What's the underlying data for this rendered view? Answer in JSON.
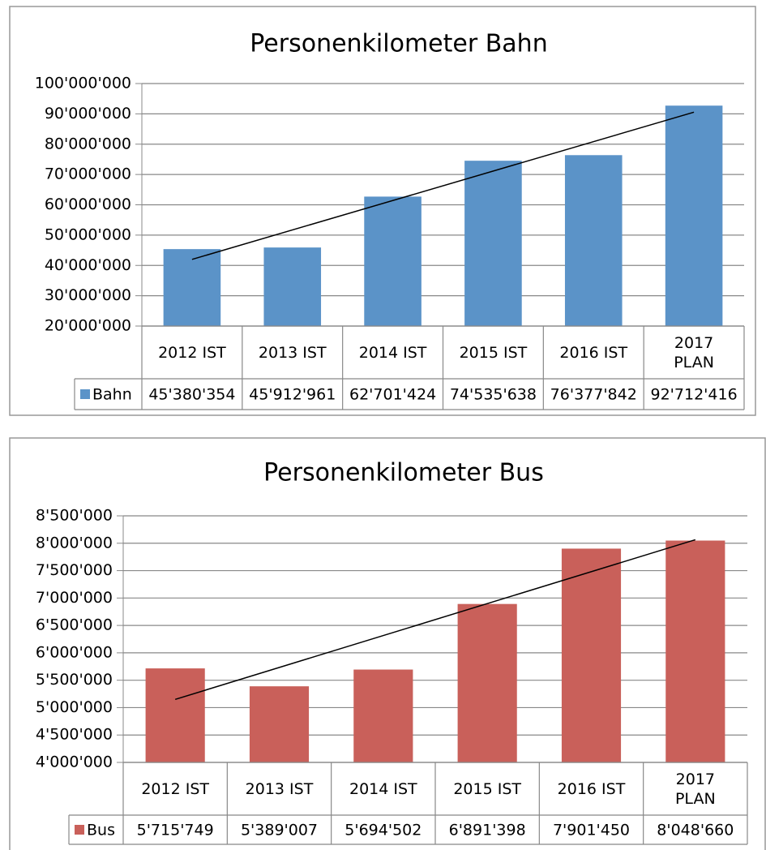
{
  "chart_data": [
    {
      "type": "bar",
      "title": "Personenkilometer Bahn",
      "categories": [
        "2012 IST",
        "2013 IST",
        "2014 IST",
        "2015 IST",
        "2016 IST",
        "2017\nPLAN"
      ],
      "series": [
        {
          "name": "Bahn",
          "color": "#5b93c8",
          "values": [
            45380354,
            45912961,
            62701424,
            74535638,
            76377842,
            92712416
          ],
          "value_labels": [
            "45'380'354",
            "45'912'961",
            "62'701'424",
            "74'535'638",
            "76'377'842",
            "92'712'416"
          ]
        }
      ],
      "ylim": [
        20000000,
        100000000
      ],
      "yticks": [
        {
          "value": 20000000,
          "label": "20'000'000"
        },
        {
          "value": 30000000,
          "label": "30'000'000"
        },
        {
          "value": 40000000,
          "label": "40'000'000"
        },
        {
          "value": 50000000,
          "label": "50'000'000"
        },
        {
          "value": 60000000,
          "label": "60'000'000"
        },
        {
          "value": 70000000,
          "label": "70'000'000"
        },
        {
          "value": 80000000,
          "label": "80'000'000"
        },
        {
          "value": 90000000,
          "label": "90'000'000"
        },
        {
          "value": 100000000,
          "label": "100'000'000"
        }
      ],
      "grid": true,
      "trendline": true,
      "data_table": true
    },
    {
      "type": "bar",
      "title": "Personenkilometer Bus",
      "categories": [
        "2012 IST",
        "2013 IST",
        "2014 IST",
        "2015 IST",
        "2016 IST",
        "2017\nPLAN"
      ],
      "series": [
        {
          "name": "Bus",
          "color": "#c9605a",
          "values": [
            5715749,
            5389007,
            5694502,
            6891398,
            7901450,
            8048660
          ],
          "value_labels": [
            "5'715'749",
            "5'389'007",
            "5'694'502",
            "6'891'398",
            "7'901'450",
            "8'048'660"
          ]
        }
      ],
      "ylim": [
        4000000,
        8500000
      ],
      "yticks": [
        {
          "value": 4000000,
          "label": "4'000'000"
        },
        {
          "value": 4500000,
          "label": "4'500'000"
        },
        {
          "value": 5000000,
          "label": "5'000'000"
        },
        {
          "value": 5500000,
          "label": "5'500'000"
        },
        {
          "value": 6000000,
          "label": "6'000'000"
        },
        {
          "value": 6500000,
          "label": "6'500'000"
        },
        {
          "value": 7000000,
          "label": "7'000'000"
        },
        {
          "value": 7500000,
          "label": "7'500'000"
        },
        {
          "value": 8000000,
          "label": "8'000'000"
        },
        {
          "value": 8500000,
          "label": "8'500'000"
        }
      ],
      "grid": true,
      "trendline": true,
      "data_table": true
    }
  ]
}
